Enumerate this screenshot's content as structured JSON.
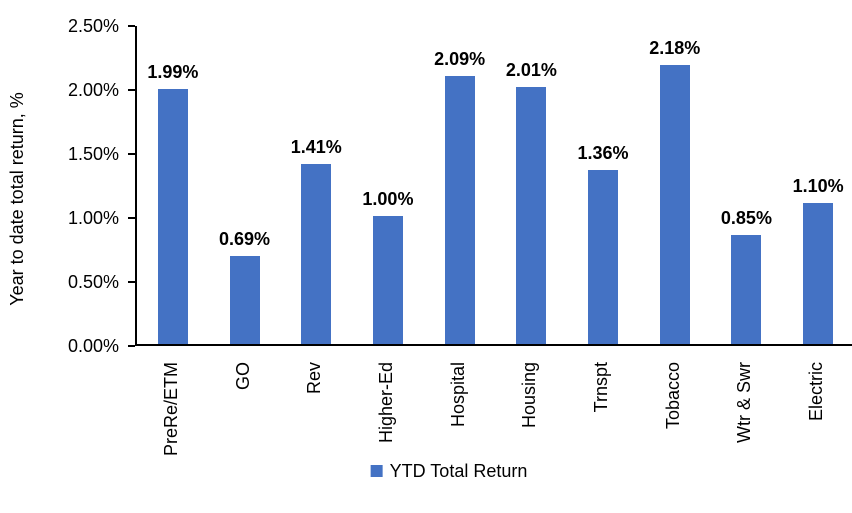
{
  "chart_data": {
    "type": "bar",
    "title": "",
    "xlabel": "",
    "ylabel": "Year to date total return, %",
    "categories": [
      "PreRe/ETM",
      "GO",
      "Rev",
      "Higher-Ed",
      "Hospital",
      "Housing",
      "Trnspt",
      "Tobacco",
      "Wtr & Swr",
      "Electric"
    ],
    "series": [
      {
        "name": "YTD Total Return",
        "values": [
          1.99,
          0.69,
          1.41,
          1.0,
          2.09,
          2.01,
          1.36,
          2.18,
          0.85,
          1.1
        ],
        "value_labels": [
          "1.99%",
          "0.69%",
          "1.41%",
          "1.00%",
          "2.09%",
          "2.01%",
          "1.36%",
          "2.18%",
          "0.85%",
          "1.10%"
        ]
      }
    ],
    "ylim": [
      0,
      2.5
    ],
    "yticks": [
      0,
      0.5,
      1.0,
      1.5,
      2.0,
      2.5
    ],
    "ytick_labels": [
      "0.00%",
      "0.50%",
      "1.00%",
      "1.50%",
      "2.00%",
      "2.50%"
    ],
    "grid": false,
    "legend_position": "bottom",
    "bar_color": "#4472C4",
    "axis_color": "#000000",
    "label_color": "#000000"
  },
  "legend": {
    "label": "YTD Total Return"
  }
}
